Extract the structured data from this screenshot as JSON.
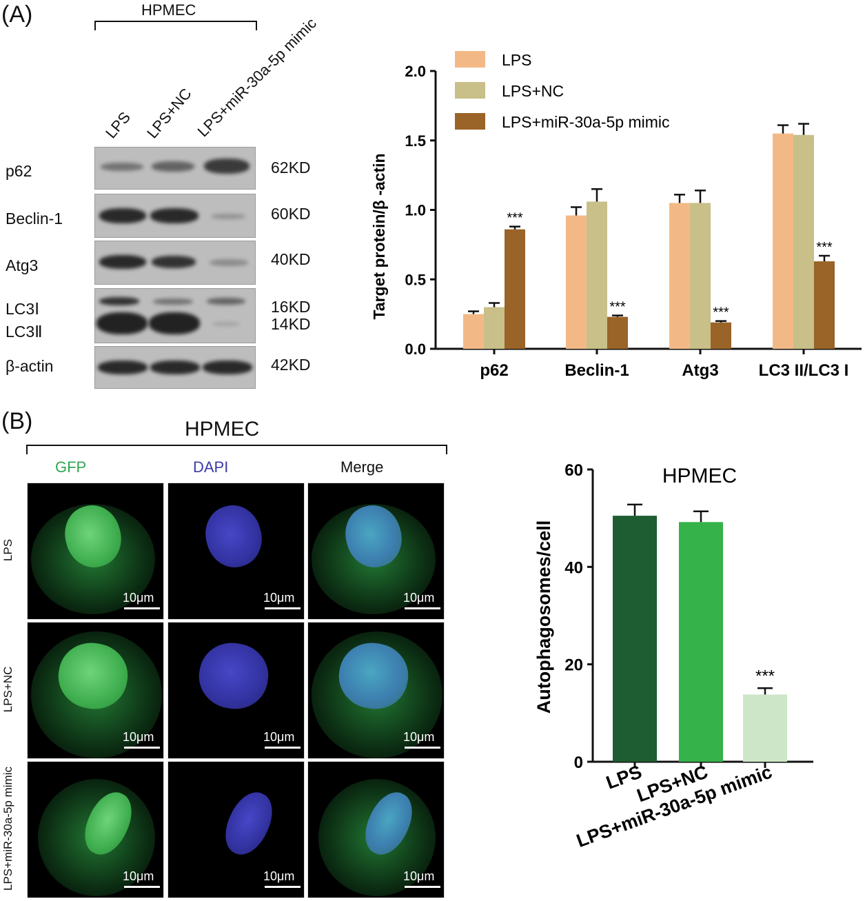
{
  "panel_a": {
    "label": "(A)",
    "group_label": "HPMEC",
    "lanes": [
      "LPS",
      "LPS+NC",
      "LPS+miR-30a-5p mimic"
    ],
    "blots": [
      {
        "protein": "p62",
        "kd": "62KD"
      },
      {
        "protein": "Beclin-1",
        "kd": "60KD"
      },
      {
        "protein": "Atg3",
        "kd": "40KD"
      },
      {
        "protein": "LC3Ⅰ",
        "protein2": "LC3Ⅱ",
        "kd": "16KD",
        "kd2": "14KD"
      },
      {
        "protein": "β-actin",
        "kd": "42KD"
      }
    ]
  },
  "panel_b": {
    "label": "(B)",
    "group_label": "HPMEC",
    "columns": [
      "GFP",
      "DAPI",
      "Merge"
    ],
    "rows": [
      "LPS",
      "LPS+NC",
      "LPS+miR-30a-5p mimic"
    ],
    "scale": "10μm",
    "colors": {
      "gfp": "#2fa84f",
      "dapi": "#3a3aa8",
      "merge": "#111111"
    }
  },
  "chart_data": [
    {
      "type": "bar",
      "categories": [
        "p62",
        "Beclin-1",
        "Atg3",
        "LC3 II/LC3 I"
      ],
      "series": [
        {
          "name": "LPS",
          "color": "#f2b987",
          "values": [
            0.25,
            0.96,
            1.05,
            1.55
          ],
          "errors": [
            0.02,
            0.06,
            0.06,
            0.06
          ]
        },
        {
          "name": "LPS+NC",
          "color": "#c8bf89",
          "values": [
            0.3,
            1.06,
            1.05,
            1.54
          ],
          "errors": [
            0.03,
            0.09,
            0.09,
            0.08
          ]
        },
        {
          "name": "LPS+miR-30a-5p mimic",
          "color": "#9a6328",
          "values": [
            0.86,
            0.23,
            0.19,
            0.63
          ],
          "errors": [
            0.02,
            0.01,
            0.01,
            0.04
          ],
          "annotations": [
            "***",
            "***",
            "***",
            "***"
          ]
        }
      ],
      "ylabel": "Target protein/β -actin",
      "ylim": [
        0,
        2.0
      ],
      "yticks": [
        "0.0",
        "0.5",
        "1.0",
        "1.5",
        "2.0"
      ],
      "legend": "top-left"
    },
    {
      "type": "bar",
      "title": "HPMEC",
      "categories": [
        "LPS",
        "LPS+NC",
        "LPS+miR-30a-5p mimic"
      ],
      "values": [
        50.5,
        49.2,
        13.8
      ],
      "errors": [
        2.3,
        2.2,
        1.3
      ],
      "colors": [
        "#1e5c31",
        "#35b24a",
        "#cde6c7"
      ],
      "annotations": [
        "",
        "",
        "***"
      ],
      "ylabel": "Autophagosomes/cell",
      "ylim": [
        0,
        60
      ],
      "yticks": [
        "0",
        "20",
        "40",
        "60"
      ]
    }
  ]
}
